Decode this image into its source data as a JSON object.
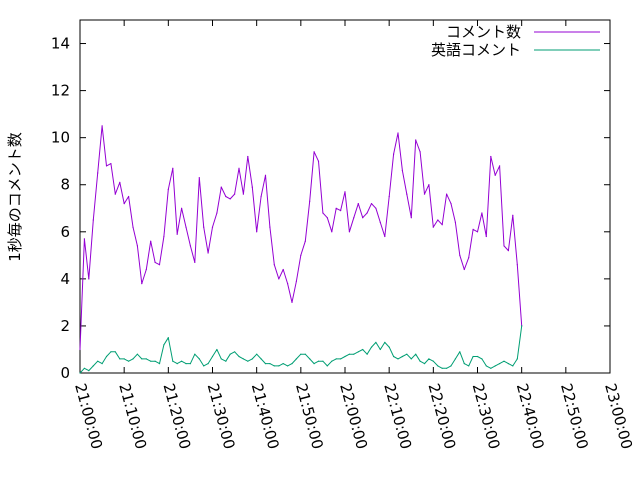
{
  "chart_data": {
    "type": "line",
    "ylabel": "1秒毎のコメント数",
    "ylim": [
      0,
      15
    ],
    "y_ticks": [
      0,
      2,
      4,
      6,
      8,
      10,
      12,
      14
    ],
    "x_range": [
      "21:00:00",
      "23:00:00"
    ],
    "x_ticks": [
      "21:00:00",
      "21:10:00",
      "21:20:00",
      "21:30:00",
      "21:40:00",
      "21:50:00",
      "22:00:00",
      "22:10:00",
      "22:20:00",
      "22:30:00",
      "22:40:00",
      "22:50:00",
      "23:00:00"
    ],
    "legend_position": "top-right",
    "grid": false,
    "series": [
      {
        "name": "コメント数",
        "color": "#9400d3",
        "points": [
          [
            "21:00:00",
            1.0
          ],
          [
            "21:01:00",
            5.7
          ],
          [
            "21:02:00",
            4.0
          ],
          [
            "21:03:00",
            6.5
          ],
          [
            "21:04:00",
            8.5
          ],
          [
            "21:05:00",
            10.5
          ],
          [
            "21:06:00",
            8.8
          ],
          [
            "21:07:00",
            8.9
          ],
          [
            "21:08:00",
            7.6
          ],
          [
            "21:09:00",
            8.1
          ],
          [
            "21:10:00",
            7.2
          ],
          [
            "21:11:00",
            7.5
          ],
          [
            "21:12:00",
            6.2
          ],
          [
            "21:13:00",
            5.4
          ],
          [
            "21:14:00",
            3.8
          ],
          [
            "21:15:00",
            4.4
          ],
          [
            "21:16:00",
            5.6
          ],
          [
            "21:17:00",
            4.7
          ],
          [
            "21:18:00",
            4.6
          ],
          [
            "21:19:00",
            5.8
          ],
          [
            "21:20:00",
            7.8
          ],
          [
            "21:21:00",
            8.7
          ],
          [
            "21:22:00",
            5.9
          ],
          [
            "21:23:00",
            7.0
          ],
          [
            "21:24:00",
            6.2
          ],
          [
            "21:25:00",
            5.4
          ],
          [
            "21:26:00",
            4.7
          ],
          [
            "21:27:00",
            8.3
          ],
          [
            "21:28:00",
            6.2
          ],
          [
            "21:29:00",
            5.1
          ],
          [
            "21:30:00",
            6.2
          ],
          [
            "21:31:00",
            6.8
          ],
          [
            "21:32:00",
            7.9
          ],
          [
            "21:33:00",
            7.5
          ],
          [
            "21:34:00",
            7.4
          ],
          [
            "21:35:00",
            7.6
          ],
          [
            "21:36:00",
            8.7
          ],
          [
            "21:37:00",
            7.6
          ],
          [
            "21:38:00",
            9.2
          ],
          [
            "21:39:00",
            7.9
          ],
          [
            "21:40:00",
            6.0
          ],
          [
            "21:41:00",
            7.5
          ],
          [
            "21:42:00",
            8.4
          ],
          [
            "21:43:00",
            6.2
          ],
          [
            "21:44:00",
            4.6
          ],
          [
            "21:45:00",
            4.0
          ],
          [
            "21:46:00",
            4.4
          ],
          [
            "21:47:00",
            3.8
          ],
          [
            "21:48:00",
            3.0
          ],
          [
            "21:49:00",
            3.9
          ],
          [
            "21:50:00",
            5.0
          ],
          [
            "21:51:00",
            5.6
          ],
          [
            "21:52:00",
            7.3
          ],
          [
            "21:53:00",
            9.4
          ],
          [
            "21:54:00",
            9.0
          ],
          [
            "21:55:00",
            6.8
          ],
          [
            "21:56:00",
            6.6
          ],
          [
            "21:57:00",
            6.0
          ],
          [
            "21:58:00",
            7.0
          ],
          [
            "21:59:00",
            6.9
          ],
          [
            "22:00:00",
            7.7
          ],
          [
            "22:01:00",
            6.0
          ],
          [
            "22:02:00",
            6.6
          ],
          [
            "22:03:00",
            7.2
          ],
          [
            "22:04:00",
            6.6
          ],
          [
            "22:05:00",
            6.8
          ],
          [
            "22:06:00",
            7.2
          ],
          [
            "22:07:00",
            7.0
          ],
          [
            "22:08:00",
            6.4
          ],
          [
            "22:09:00",
            5.8
          ],
          [
            "22:10:00",
            7.5
          ],
          [
            "22:11:00",
            9.3
          ],
          [
            "22:12:00",
            10.2
          ],
          [
            "22:13:00",
            8.6
          ],
          [
            "22:14:00",
            7.6
          ],
          [
            "22:15:00",
            6.6
          ],
          [
            "22:16:00",
            9.9
          ],
          [
            "22:17:00",
            9.4
          ],
          [
            "22:18:00",
            7.6
          ],
          [
            "22:19:00",
            8.0
          ],
          [
            "22:20:00",
            6.2
          ],
          [
            "22:21:00",
            6.5
          ],
          [
            "22:22:00",
            6.3
          ],
          [
            "22:23:00",
            7.6
          ],
          [
            "22:24:00",
            7.2
          ],
          [
            "22:25:00",
            6.4
          ],
          [
            "22:26:00",
            5.0
          ],
          [
            "22:27:00",
            4.4
          ],
          [
            "22:28:00",
            4.9
          ],
          [
            "22:29:00",
            6.1
          ],
          [
            "22:30:00",
            6.0
          ],
          [
            "22:31:00",
            6.8
          ],
          [
            "22:32:00",
            5.8
          ],
          [
            "22:33:00",
            9.2
          ],
          [
            "22:34:00",
            8.4
          ],
          [
            "22:35:00",
            8.8
          ],
          [
            "22:36:00",
            5.4
          ],
          [
            "22:37:00",
            5.2
          ],
          [
            "22:38:00",
            6.7
          ],
          [
            "22:39:00",
            4.6
          ],
          [
            "22:40:00",
            2.0
          ]
        ]
      },
      {
        "name": "英語コメント",
        "color": "#009e73",
        "points": [
          [
            "21:00:00",
            0.0
          ],
          [
            "21:01:00",
            0.2
          ],
          [
            "21:02:00",
            0.1
          ],
          [
            "21:03:00",
            0.3
          ],
          [
            "21:04:00",
            0.5
          ],
          [
            "21:05:00",
            0.4
          ],
          [
            "21:06:00",
            0.7
          ],
          [
            "21:07:00",
            0.9
          ],
          [
            "21:08:00",
            0.9
          ],
          [
            "21:09:00",
            0.6
          ],
          [
            "21:10:00",
            0.6
          ],
          [
            "21:11:00",
            0.5
          ],
          [
            "21:12:00",
            0.6
          ],
          [
            "21:13:00",
            0.8
          ],
          [
            "21:14:00",
            0.6
          ],
          [
            "21:15:00",
            0.6
          ],
          [
            "21:16:00",
            0.5
          ],
          [
            "21:17:00",
            0.5
          ],
          [
            "21:18:00",
            0.4
          ],
          [
            "21:19:00",
            1.2
          ],
          [
            "21:20:00",
            1.5
          ],
          [
            "21:21:00",
            0.5
          ],
          [
            "21:22:00",
            0.4
          ],
          [
            "21:23:00",
            0.5
          ],
          [
            "21:24:00",
            0.4
          ],
          [
            "21:25:00",
            0.4
          ],
          [
            "21:26:00",
            0.8
          ],
          [
            "21:27:00",
            0.6
          ],
          [
            "21:28:00",
            0.3
          ],
          [
            "21:29:00",
            0.4
          ],
          [
            "21:30:00",
            0.7
          ],
          [
            "21:31:00",
            1.0
          ],
          [
            "21:32:00",
            0.6
          ],
          [
            "21:33:00",
            0.5
          ],
          [
            "21:34:00",
            0.8
          ],
          [
            "21:35:00",
            0.9
          ],
          [
            "21:36:00",
            0.7
          ],
          [
            "21:37:00",
            0.6
          ],
          [
            "21:38:00",
            0.5
          ],
          [
            "21:39:00",
            0.6
          ],
          [
            "21:40:00",
            0.8
          ],
          [
            "21:41:00",
            0.6
          ],
          [
            "21:42:00",
            0.4
          ],
          [
            "21:43:00",
            0.4
          ],
          [
            "21:44:00",
            0.3
          ],
          [
            "21:45:00",
            0.3
          ],
          [
            "21:46:00",
            0.4
          ],
          [
            "21:47:00",
            0.3
          ],
          [
            "21:48:00",
            0.4
          ],
          [
            "21:49:00",
            0.6
          ],
          [
            "21:50:00",
            0.8
          ],
          [
            "21:51:00",
            0.8
          ],
          [
            "21:52:00",
            0.6
          ],
          [
            "21:53:00",
            0.4
          ],
          [
            "21:54:00",
            0.5
          ],
          [
            "21:55:00",
            0.5
          ],
          [
            "21:56:00",
            0.3
          ],
          [
            "21:57:00",
            0.5
          ],
          [
            "21:58:00",
            0.6
          ],
          [
            "21:59:00",
            0.6
          ],
          [
            "22:00:00",
            0.7
          ],
          [
            "22:01:00",
            0.8
          ],
          [
            "22:02:00",
            0.8
          ],
          [
            "22:03:00",
            0.9
          ],
          [
            "22:04:00",
            1.0
          ],
          [
            "22:05:00",
            0.8
          ],
          [
            "22:06:00",
            1.1
          ],
          [
            "22:07:00",
            1.3
          ],
          [
            "22:08:00",
            1.0
          ],
          [
            "22:09:00",
            1.3
          ],
          [
            "22:10:00",
            1.1
          ],
          [
            "22:11:00",
            0.7
          ],
          [
            "22:12:00",
            0.6
          ],
          [
            "22:13:00",
            0.7
          ],
          [
            "22:14:00",
            0.8
          ],
          [
            "22:15:00",
            0.6
          ],
          [
            "22:16:00",
            0.8
          ],
          [
            "22:17:00",
            0.5
          ],
          [
            "22:18:00",
            0.4
          ],
          [
            "22:19:00",
            0.6
          ],
          [
            "22:20:00",
            0.5
          ],
          [
            "22:21:00",
            0.3
          ],
          [
            "22:22:00",
            0.2
          ],
          [
            "22:23:00",
            0.2
          ],
          [
            "22:24:00",
            0.3
          ],
          [
            "22:25:00",
            0.6
          ],
          [
            "22:26:00",
            0.9
          ],
          [
            "22:27:00",
            0.4
          ],
          [
            "22:28:00",
            0.3
          ],
          [
            "22:29:00",
            0.7
          ],
          [
            "22:30:00",
            0.7
          ],
          [
            "22:31:00",
            0.6
          ],
          [
            "22:32:00",
            0.3
          ],
          [
            "22:33:00",
            0.2
          ],
          [
            "22:34:00",
            0.3
          ],
          [
            "22:35:00",
            0.4
          ],
          [
            "22:36:00",
            0.5
          ],
          [
            "22:37:00",
            0.4
          ],
          [
            "22:38:00",
            0.3
          ],
          [
            "22:39:00",
            0.6
          ],
          [
            "22:40:00",
            2.0
          ]
        ]
      }
    ]
  }
}
